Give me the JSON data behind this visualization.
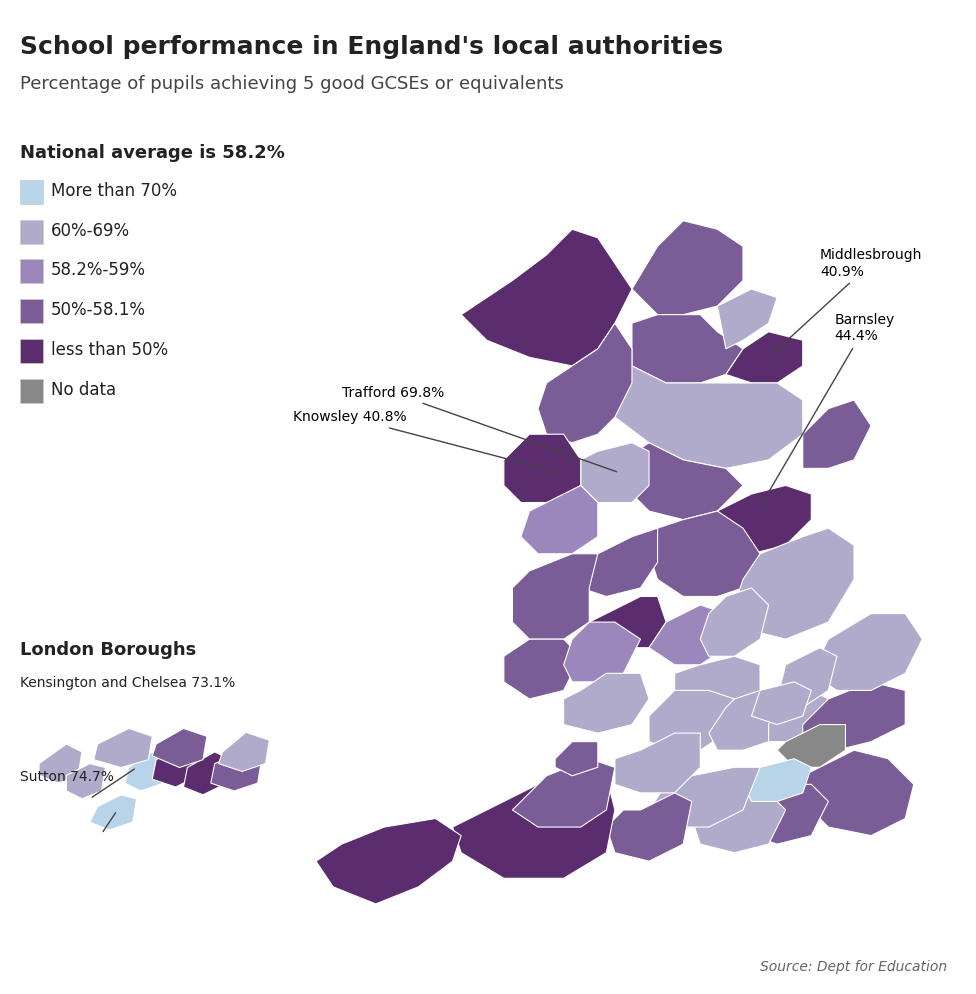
{
  "title": "School performance in England's local authorities",
  "subtitle": "Percentage of pupils achieving 5 good GCSEs or equivalents",
  "legend_title": "National average is 58.2%",
  "legend_items": [
    {
      "label": "More than 70%",
      "color": "#b8d4e8"
    },
    {
      "label": "60%-69%",
      "color": "#b0aacb"
    },
    {
      "label": "58.2%-59%",
      "color": "#9b87bb"
    },
    {
      "label": "50%-58.1%",
      "color": "#7a5c96"
    },
    {
      "label": "less than 50%",
      "color": "#5c2d6e"
    },
    {
      "label": "No data",
      "color": "#888888"
    }
  ],
  "source_text": "Source: Dept for Education",
  "background_color": "#ffffff",
  "title_fontsize": 18,
  "subtitle_fontsize": 13,
  "legend_fontsize": 12,
  "colors": {
    "more_than_70": "#b8d4e8",
    "60_to_69": "#b0aacb",
    "58_to_59": "#9b87bb",
    "50_to_58": "#7a5c96",
    "less_50": "#5c2d6e",
    "no_data": "#888888",
    "border": "#ffffff"
  }
}
